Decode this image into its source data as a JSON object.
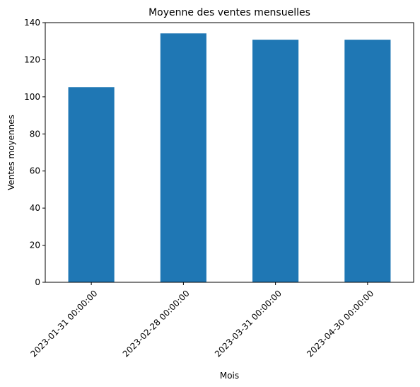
{
  "chart_data": {
    "type": "bar",
    "title": "Moyenne des ventes mensuelles",
    "xlabel": "Mois",
    "ylabel": "Ventes moyennes",
    "categories": [
      "2023-01-31 00:00:00",
      "2023-02-28 00:00:00",
      "2023-03-31 00:00:00",
      "2023-04-30 00:00:00"
    ],
    "values": [
      105.2,
      134.2,
      130.8,
      130.8
    ],
    "ylim": [
      0,
      140
    ],
    "yticks": [
      0,
      20,
      40,
      60,
      80,
      100,
      120,
      140
    ],
    "grid": false,
    "legend": "none",
    "colors": {
      "bar": "#1f77b4",
      "axes": "#000000",
      "background": "#ffffff"
    }
  }
}
